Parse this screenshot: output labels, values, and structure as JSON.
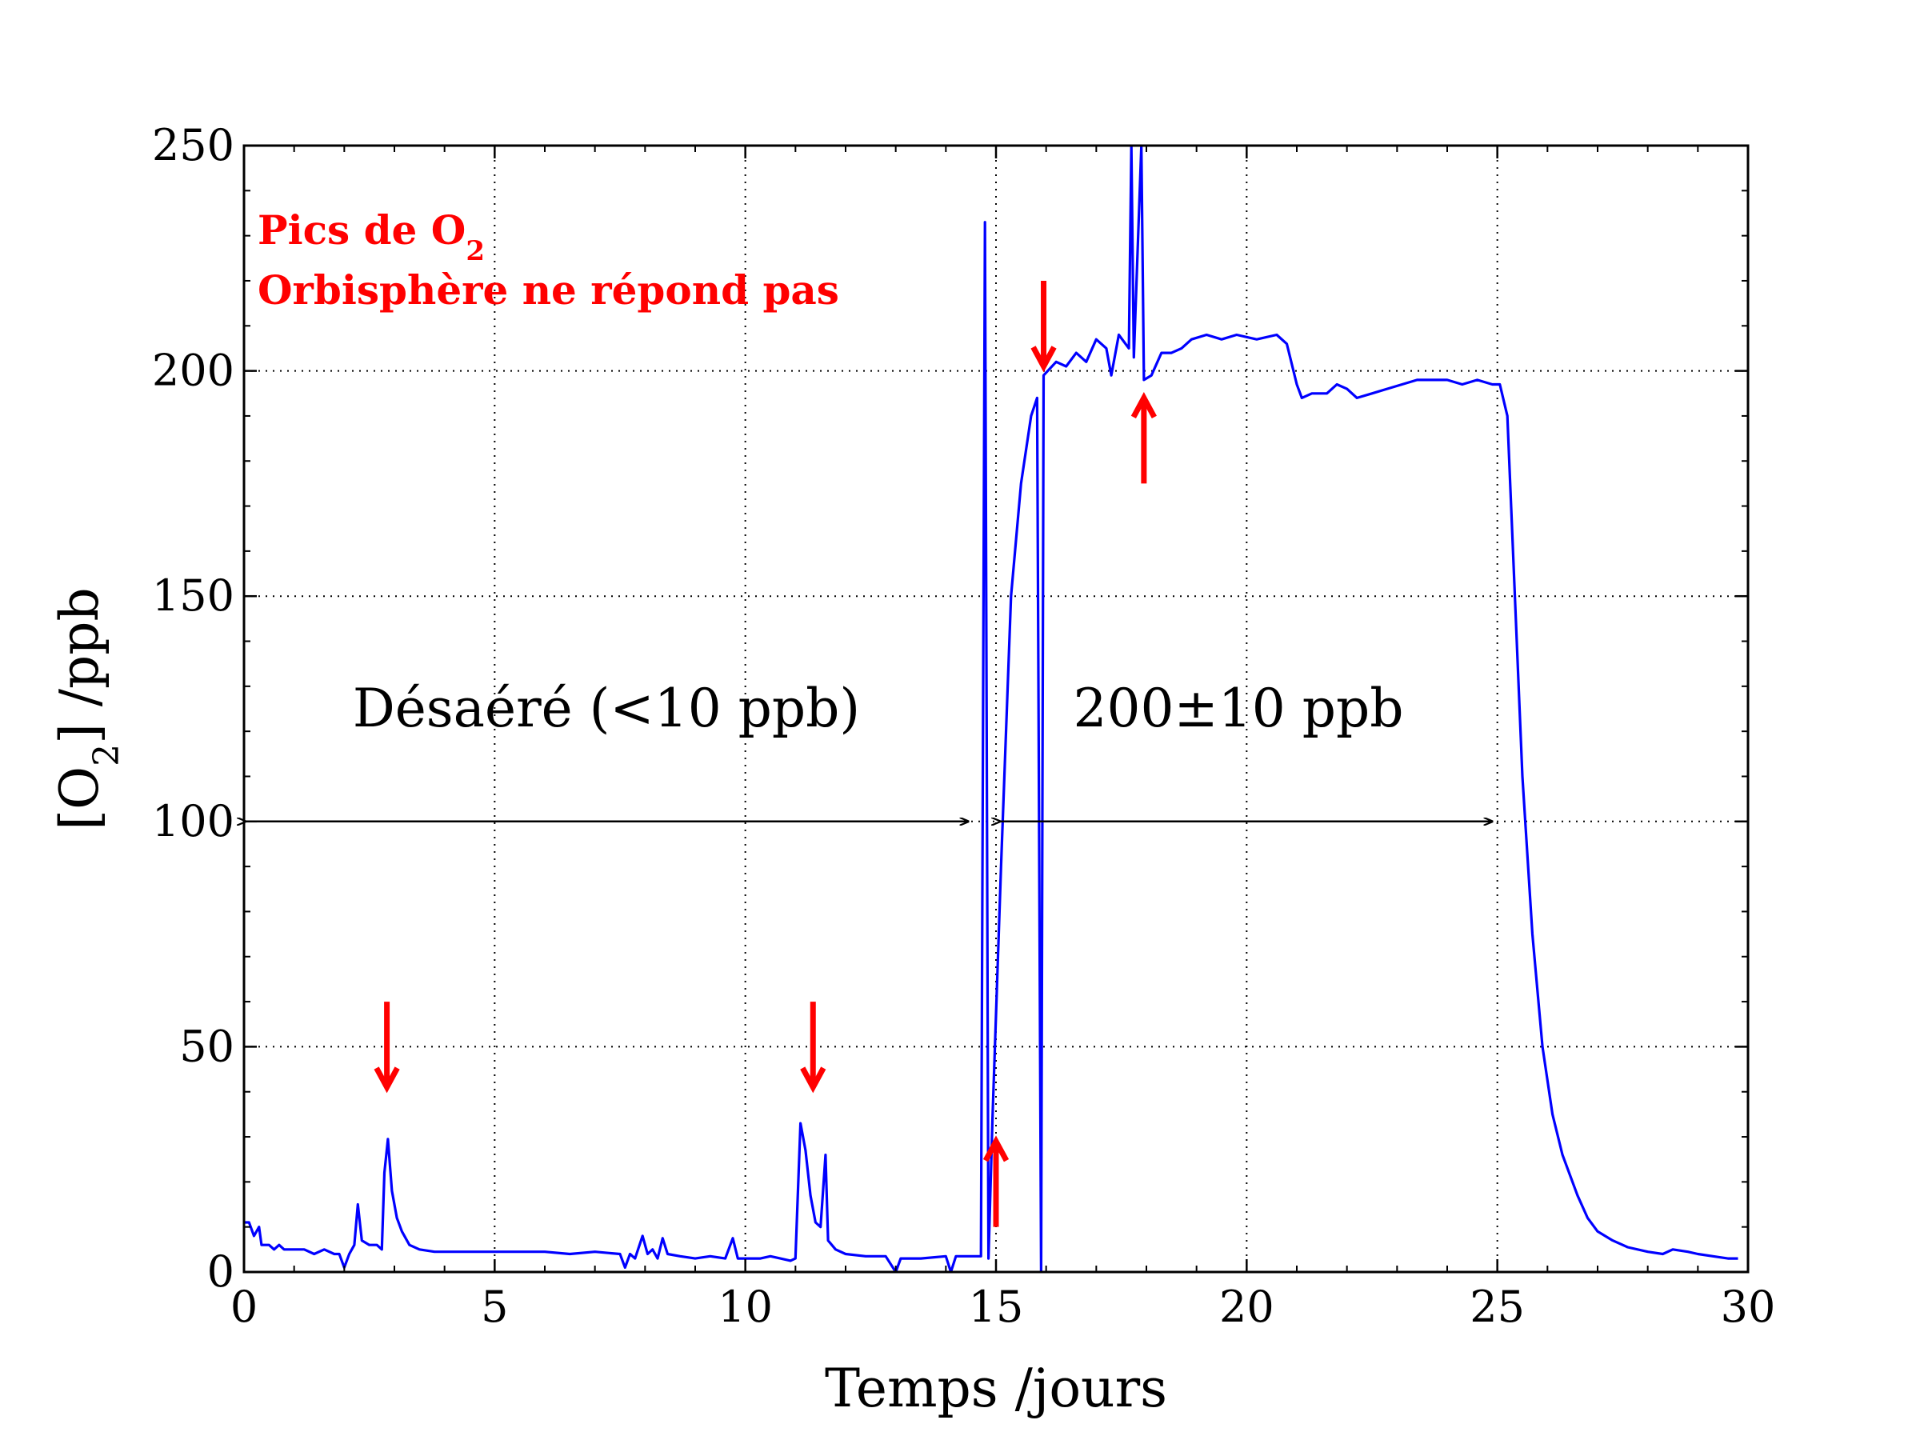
{
  "chart_data": {
    "type": "line",
    "title": "",
    "xlabel": "Temps /jours",
    "ylabel_main": "[O",
    "ylabel_sub": "2",
    "ylabel_tail": "] /ppb",
    "xlim": [
      0,
      30
    ],
    "ylim": [
      0,
      250
    ],
    "xticks": [
      0,
      5,
      10,
      15,
      20,
      25,
      30
    ],
    "yticks": [
      0,
      50,
      100,
      150,
      200,
      250
    ],
    "xtick_labels": [
      "0",
      "5",
      "10",
      "15",
      "20",
      "25",
      "30"
    ],
    "ytick_labels": [
      "0",
      "50",
      "100",
      "150",
      "200",
      "250"
    ],
    "grid": true,
    "line_color": "#0000ff",
    "arrow_color": "#ff0000",
    "series": [
      {
        "points": [
          [
            0.0,
            11
          ],
          [
            0.1,
            11
          ],
          [
            0.2,
            8
          ],
          [
            0.3,
            10
          ],
          [
            0.35,
            6
          ],
          [
            0.5,
            6
          ],
          [
            0.6,
            5
          ],
          [
            0.7,
            6
          ],
          [
            0.8,
            5
          ],
          [
            1.0,
            5
          ],
          [
            1.2,
            5
          ],
          [
            1.4,
            4
          ],
          [
            1.6,
            5
          ],
          [
            1.8,
            4
          ],
          [
            1.9,
            4
          ],
          [
            2.0,
            1
          ],
          [
            2.1,
            4
          ],
          [
            2.2,
            6
          ],
          [
            2.27,
            15
          ],
          [
            2.35,
            7
          ],
          [
            2.5,
            6
          ],
          [
            2.65,
            6
          ],
          [
            2.75,
            5
          ],
          [
            2.8,
            22
          ],
          [
            2.87,
            29.5
          ],
          [
            2.95,
            18
          ],
          [
            3.05,
            12
          ],
          [
            3.15,
            9
          ],
          [
            3.3,
            6
          ],
          [
            3.5,
            5
          ],
          [
            3.8,
            4.5
          ],
          [
            4.2,
            4.5
          ],
          [
            5.0,
            4.5
          ],
          [
            6.0,
            4.5
          ],
          [
            6.5,
            4
          ],
          [
            7.0,
            4.5
          ],
          [
            7.5,
            4
          ],
          [
            7.6,
            1
          ],
          [
            7.7,
            4
          ],
          [
            7.8,
            3
          ],
          [
            7.95,
            8
          ],
          [
            8.05,
            4
          ],
          [
            8.15,
            5
          ],
          [
            8.25,
            3
          ],
          [
            8.35,
            7.5
          ],
          [
            8.45,
            4
          ],
          [
            8.7,
            3.5
          ],
          [
            9.0,
            3
          ],
          [
            9.3,
            3.5
          ],
          [
            9.6,
            3
          ],
          [
            9.75,
            7.5
          ],
          [
            9.85,
            3
          ],
          [
            10.0,
            3
          ],
          [
            10.3,
            3
          ],
          [
            10.5,
            3.5
          ],
          [
            10.7,
            3
          ],
          [
            10.9,
            2.5
          ],
          [
            11.0,
            3
          ],
          [
            11.1,
            33
          ],
          [
            11.2,
            27
          ],
          [
            11.3,
            17
          ],
          [
            11.4,
            11
          ],
          [
            11.5,
            10
          ],
          [
            11.6,
            26
          ],
          [
            11.65,
            7
          ],
          [
            11.8,
            5
          ],
          [
            12.0,
            4
          ],
          [
            12.4,
            3.5
          ],
          [
            12.8,
            3.5
          ],
          [
            13.0,
            0
          ],
          [
            13.1,
            3
          ],
          [
            13.5,
            3
          ],
          [
            14.0,
            3.5
          ],
          [
            14.1,
            0
          ],
          [
            14.2,
            3.5
          ],
          [
            14.7,
            3.5
          ],
          [
            14.78,
            233
          ],
          [
            14.85,
            3
          ],
          [
            14.93,
            34
          ],
          [
            15.1,
            90
          ],
          [
            15.3,
            150
          ],
          [
            15.5,
            175
          ],
          [
            15.7,
            190
          ],
          [
            15.82,
            194
          ],
          [
            15.9,
            0
          ],
          [
            15.95,
            199
          ],
          [
            16.2,
            202
          ],
          [
            16.4,
            201
          ],
          [
            16.6,
            204
          ],
          [
            16.8,
            202
          ],
          [
            17.0,
            207
          ],
          [
            17.2,
            205
          ],
          [
            17.3,
            199
          ],
          [
            17.45,
            208
          ],
          [
            17.65,
            205
          ],
          [
            17.7,
            250
          ],
          [
            17.75,
            203
          ],
          [
            17.9,
            250
          ],
          [
            17.95,
            198
          ],
          [
            18.1,
            199
          ],
          [
            18.3,
            204
          ],
          [
            18.5,
            204
          ],
          [
            18.7,
            205
          ],
          [
            18.9,
            207
          ],
          [
            19.2,
            208
          ],
          [
            19.5,
            207
          ],
          [
            19.8,
            208
          ],
          [
            20.2,
            207
          ],
          [
            20.6,
            208
          ],
          [
            20.8,
            206
          ],
          [
            21.0,
            197
          ],
          [
            21.1,
            194
          ],
          [
            21.3,
            195
          ],
          [
            21.6,
            195
          ],
          [
            21.8,
            197
          ],
          [
            22.0,
            196
          ],
          [
            22.2,
            194
          ],
          [
            22.5,
            195
          ],
          [
            22.8,
            196
          ],
          [
            23.1,
            197
          ],
          [
            23.4,
            198
          ],
          [
            23.7,
            198
          ],
          [
            24.0,
            198
          ],
          [
            24.3,
            197
          ],
          [
            24.6,
            198
          ],
          [
            24.9,
            197
          ],
          [
            25.05,
            197
          ],
          [
            25.2,
            190
          ],
          [
            25.35,
            150
          ],
          [
            25.5,
            110
          ],
          [
            25.7,
            75
          ],
          [
            25.9,
            50
          ],
          [
            26.1,
            35
          ],
          [
            26.3,
            26
          ],
          [
            26.6,
            17
          ],
          [
            26.8,
            12
          ],
          [
            27.0,
            9
          ],
          [
            27.3,
            7
          ],
          [
            27.6,
            5.5
          ],
          [
            28.0,
            4.5
          ],
          [
            28.3,
            4
          ],
          [
            28.5,
            5
          ],
          [
            28.8,
            4.5
          ],
          [
            29.0,
            4
          ],
          [
            29.3,
            3.5
          ],
          [
            29.6,
            3
          ],
          [
            29.8,
            3
          ]
        ]
      }
    ],
    "annotations": {
      "red_title_line1": "Pics de O",
      "red_title_sub": "2",
      "red_title_line2": "Orbisphère ne répond pas",
      "left_region": "Désaéré (<10 ppb)",
      "right_region": "200±10 ppb"
    },
    "region_arrows": [
      {
        "from": [
          0.0,
          100
        ],
        "to": [
          14.45,
          100
        ]
      },
      {
        "from": [
          15.05,
          100
        ],
        "to": [
          24.9,
          100
        ]
      }
    ],
    "red_arrows": [
      {
        "x": 2.85,
        "from": 60,
        "to": 41,
        "direction": "down"
      },
      {
        "x": 11.35,
        "from": 60,
        "to": 41,
        "direction": "down"
      },
      {
        "x": 15.0,
        "from": 10,
        "to": 29,
        "direction": "up"
      },
      {
        "x": 15.95,
        "from": 220,
        "to": 201,
        "direction": "down"
      },
      {
        "x": 17.95,
        "from": 175,
        "to": 194,
        "direction": "up"
      }
    ]
  }
}
